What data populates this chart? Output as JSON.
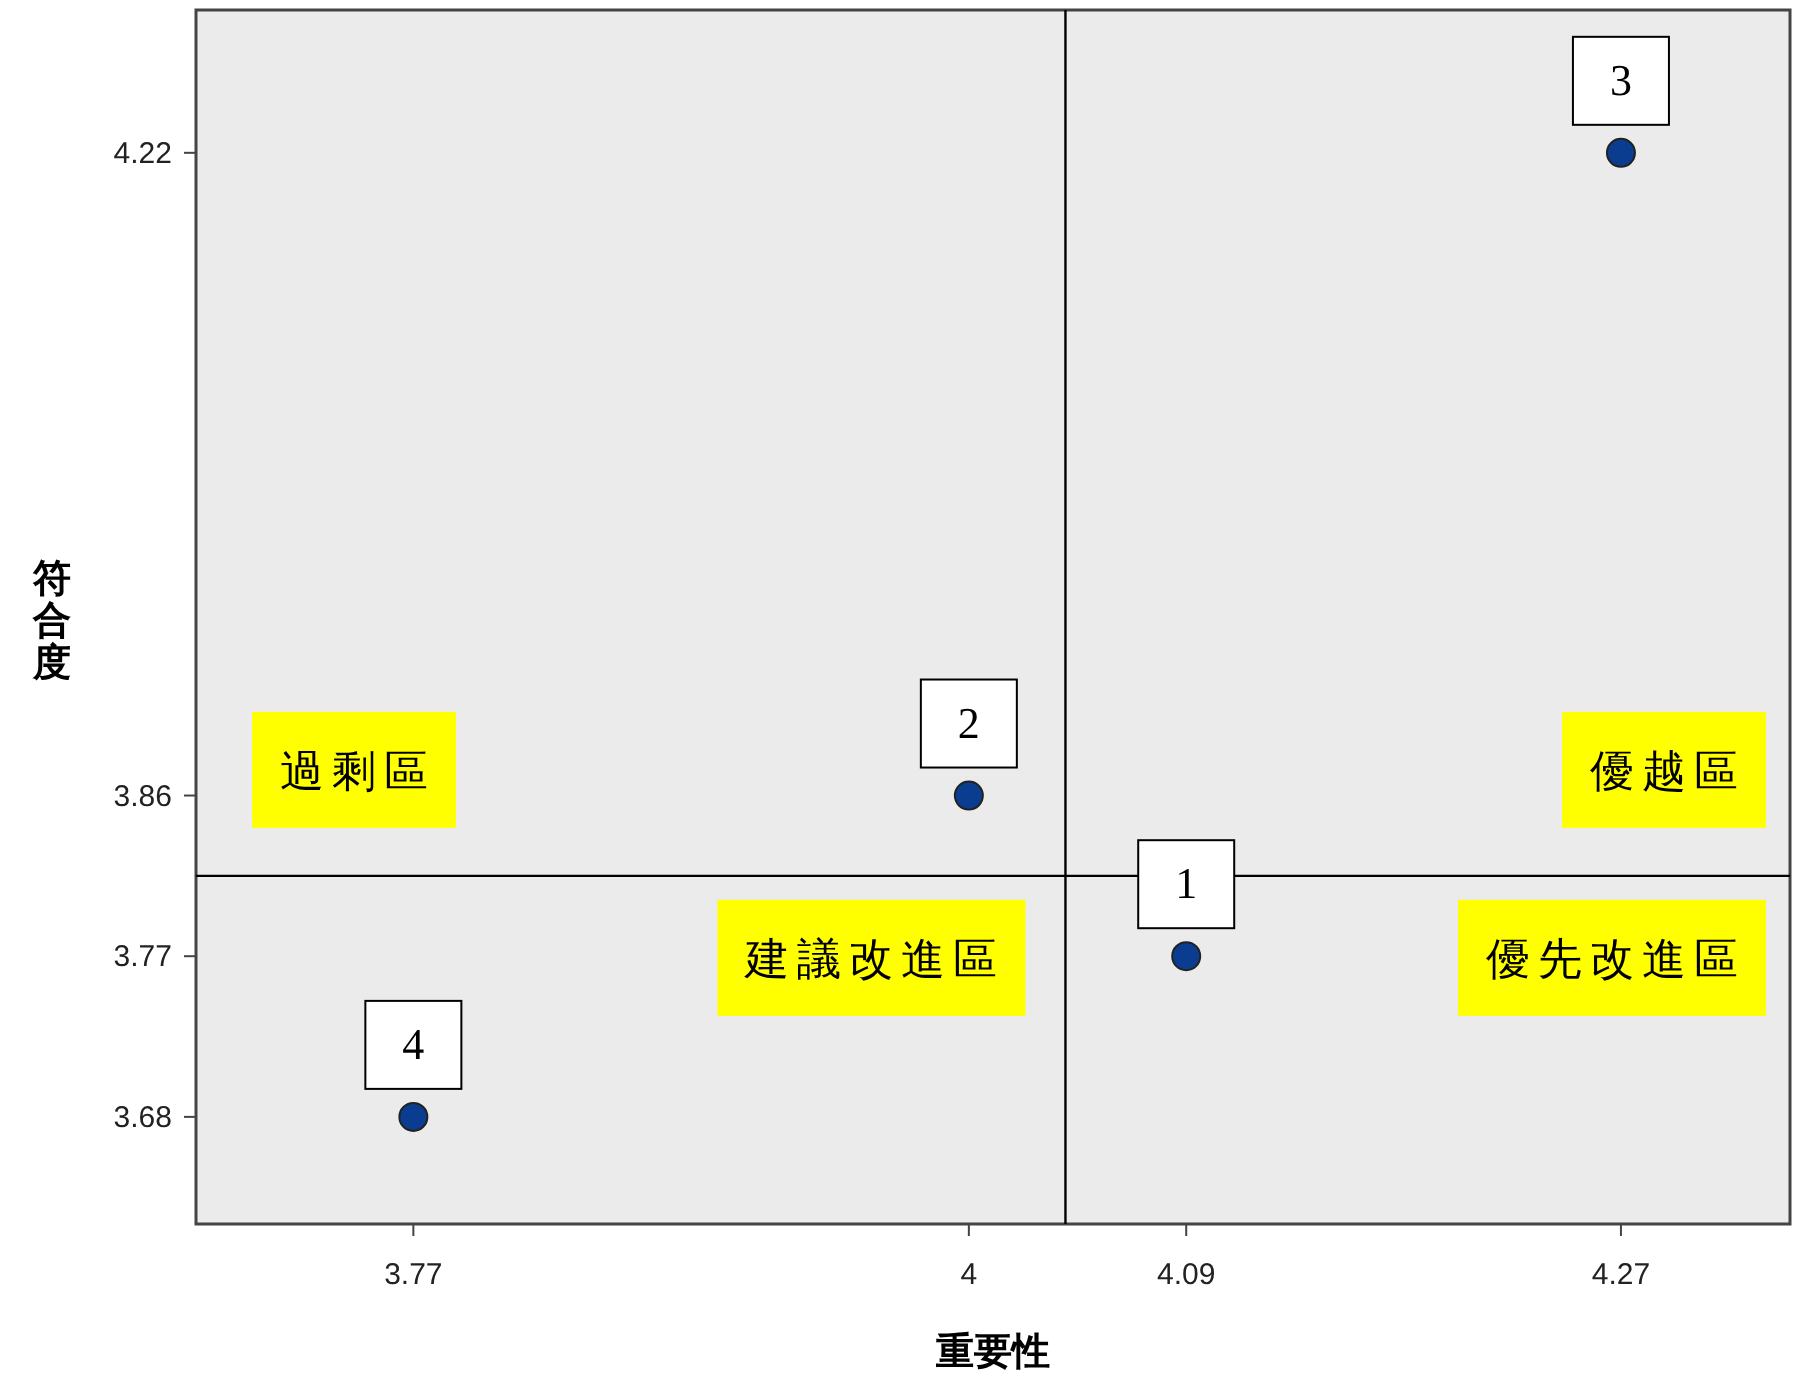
{
  "chart_data": {
    "type": "scatter",
    "xlabel": "重要性",
    "ylabel": "符合度",
    "xlim": [
      3.68,
      4.34
    ],
    "xticks": [
      3.77,
      4,
      4.09,
      4.27
    ],
    "ylim": [
      3.62,
      4.3
    ],
    "yticks": [
      3.68,
      3.77,
      3.86,
      4.22
    ],
    "series": [
      {
        "color": "#0a3d8f",
        "x": [
          3.77,
          4,
          4.09,
          4.27
        ],
        "values": [
          3.68,
          3.86,
          3.77,
          4.22
        ]
      }
    ],
    "marker": "circle",
    "ref_lines": [
      {
        "axis": "x",
        "value": 4.04,
        "color": "#000000"
      },
      {
        "axis": "y",
        "value": 3.815,
        "color": "#000000"
      }
    ],
    "annotations": [
      {
        "text": "4",
        "x": 3.77,
        "y": 3.68
      },
      {
        "text": "2",
        "x": 4,
        "y": 3.86
      },
      {
        "text": "1",
        "x": 4.09,
        "y": 3.77
      },
      {
        "text": "3",
        "x": 4.27,
        "y": 4.22
      },
      "過剩區",
      "優越區",
      "建議改進區",
      "優先改進區"
    ]
  }
}
